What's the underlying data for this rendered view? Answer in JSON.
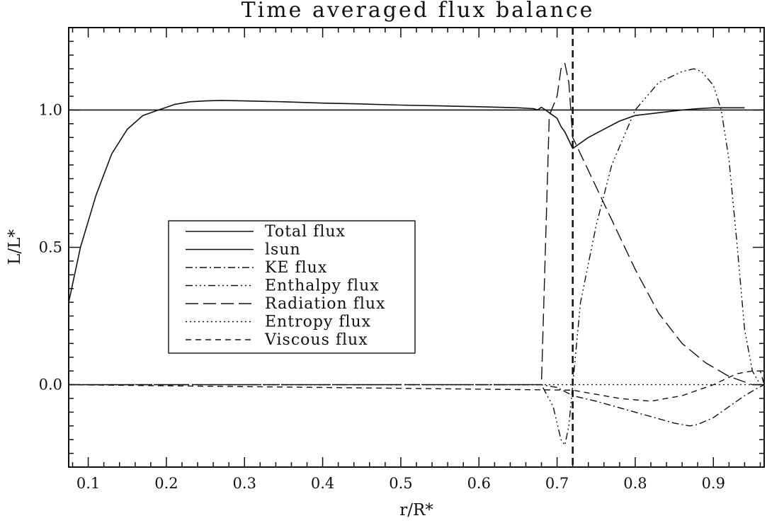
{
  "chart_data": {
    "type": "line",
    "title": "Time averaged flux balance",
    "xlabel": "r/R*",
    "ylabel": "L/L*",
    "xlim": [
      0.075,
      0.965
    ],
    "ylim": [
      -0.3,
      1.3
    ],
    "xticks": [
      0.1,
      0.2,
      0.3,
      0.4,
      0.5,
      0.6,
      0.7,
      0.8,
      0.9
    ],
    "xtick_labels": [
      "0.1",
      "0.2",
      "0.3",
      "0.4",
      "0.5",
      "0.6",
      "0.7",
      "0.8",
      "0.9"
    ],
    "yticks": [
      0.0,
      0.5,
      1.0
    ],
    "ytick_labels": [
      "0.0",
      "0.5",
      "1.0"
    ],
    "grid": false,
    "legend_position": "center-left",
    "reference_line": {
      "x": 0.72,
      "style": "dashed"
    },
    "series": [
      {
        "name": "Total flux",
        "dash": "solid",
        "x": [
          0.075,
          0.09,
          0.11,
          0.13,
          0.15,
          0.17,
          0.19,
          0.2,
          0.21,
          0.23,
          0.25,
          0.27,
          0.3,
          0.35,
          0.4,
          0.45,
          0.5,
          0.55,
          0.6,
          0.65,
          0.67,
          0.675,
          0.68,
          0.685,
          0.69,
          0.695,
          0.7,
          0.705,
          0.71,
          0.715,
          0.72,
          0.725,
          0.74,
          0.76,
          0.78,
          0.8,
          0.83,
          0.86,
          0.88,
          0.9,
          0.92,
          0.94
        ],
        "y": [
          0.3,
          0.5,
          0.69,
          0.84,
          0.93,
          0.98,
          1.0,
          1.01,
          1.02,
          1.03,
          1.033,
          1.035,
          1.033,
          1.03,
          1.025,
          1.022,
          1.018,
          1.015,
          1.012,
          1.008,
          1.005,
          1.0,
          1.01,
          1.0,
          0.99,
          0.98,
          0.97,
          0.94,
          0.92,
          0.89,
          0.86,
          0.87,
          0.9,
          0.93,
          0.96,
          0.98,
          0.99,
          1.0,
          1.005,
          1.008,
          1.008,
          1.008
        ]
      },
      {
        "name": "lsun",
        "dash": "solid",
        "x": [
          0.075,
          0.965
        ],
        "y": [
          1.0,
          1.0
        ]
      },
      {
        "name": "KE flux",
        "dash": "dashdot",
        "x": [
          0.075,
          0.68,
          0.7,
          0.72,
          0.75,
          0.8,
          0.85,
          0.87,
          0.88,
          0.9,
          0.92,
          0.94,
          0.955,
          0.965
        ],
        "y": [
          0.0,
          0.0,
          -0.01,
          -0.04,
          -0.06,
          -0.1,
          -0.14,
          -0.15,
          -0.145,
          -0.12,
          -0.08,
          -0.04,
          -0.015,
          0.0
        ]
      },
      {
        "name": "Enthalpy flux",
        "dash": "dashdotdotdot",
        "x": [
          0.075,
          0.68,
          0.695,
          0.705,
          0.71,
          0.715,
          0.72,
          0.73,
          0.75,
          0.77,
          0.8,
          0.83,
          0.86,
          0.875,
          0.885,
          0.9,
          0.91,
          0.92,
          0.93,
          0.94,
          0.95,
          0.96,
          0.965
        ],
        "y": [
          0.0,
          0.0,
          -0.08,
          -0.2,
          -0.22,
          -0.15,
          0.0,
          0.3,
          0.58,
          0.8,
          1.0,
          1.1,
          1.14,
          1.15,
          1.14,
          1.09,
          1.0,
          0.82,
          0.52,
          0.2,
          0.05,
          0.0,
          0.0
        ]
      },
      {
        "name": "Radiation flux",
        "dash": "longdash",
        "x": [
          0.075,
          0.68,
          0.69,
          0.7,
          0.705,
          0.71,
          0.715,
          0.72,
          0.74,
          0.77,
          0.8,
          0.83,
          0.86,
          0.89,
          0.92,
          0.95,
          0.965
        ],
        "y": [
          0.0,
          0.0,
          0.98,
          1.05,
          1.15,
          1.17,
          1.1,
          0.9,
          0.78,
          0.6,
          0.42,
          0.26,
          0.15,
          0.08,
          0.03,
          0.0,
          0.0
        ]
      },
      {
        "name": "Entropy flux",
        "dash": "dotted",
        "x": [
          0.075,
          0.965
        ],
        "y": [
          0.0,
          0.0
        ]
      },
      {
        "name": "Viscous flux",
        "dash": "shortdash",
        "x": [
          0.075,
          0.72,
          0.78,
          0.82,
          0.86,
          0.9,
          0.93,
          0.95,
          0.96,
          0.965
        ],
        "y": [
          0.0,
          -0.02,
          -0.05,
          -0.06,
          -0.04,
          0.0,
          0.04,
          0.05,
          0.05,
          0.0
        ]
      }
    ]
  }
}
